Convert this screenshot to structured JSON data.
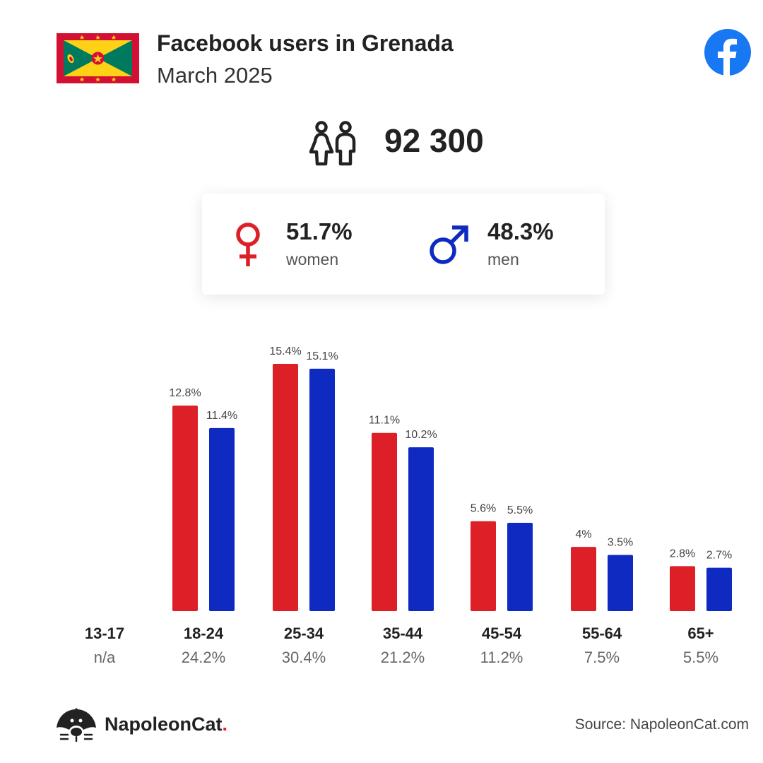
{
  "header": {
    "title": "Facebook users in Grenada",
    "subtitle": "March 2025"
  },
  "total": {
    "value": "92 300"
  },
  "gender": {
    "women_pct": "51.7%",
    "women_label": "women",
    "men_pct": "48.3%",
    "men_label": "men"
  },
  "colors": {
    "women": "#dd1f28",
    "men": "#0f2ac1",
    "facebook": "#1877f2",
    "flag_red": "#d21034",
    "flag_yellow": "#fcd116",
    "flag_green": "#007a5e"
  },
  "icons": {
    "flag": "grenada-flag-icon",
    "facebook": "facebook-logo-icon",
    "people": "people-icon",
    "female": "female-symbol-icon",
    "male": "male-symbol-icon",
    "brand": "napoleoncat-logo-icon"
  },
  "chart_data": {
    "type": "bar",
    "categories": [
      "13-17",
      "18-24",
      "25-34",
      "35-44",
      "45-54",
      "55-64",
      "65+"
    ],
    "category_shares": [
      "n/a",
      "24.2%",
      "30.4%",
      "21.2%",
      "11.2%",
      "7.5%",
      "5.5%"
    ],
    "series": [
      {
        "name": "women",
        "values": [
          null,
          12.8,
          15.4,
          11.1,
          5.6,
          4,
          2.8
        ],
        "labels": [
          "",
          "12.8%",
          "15.4%",
          "11.1%",
          "5.6%",
          "4%",
          "2.8%"
        ]
      },
      {
        "name": "men",
        "values": [
          null,
          11.4,
          15.1,
          10.2,
          5.5,
          3.5,
          2.7
        ],
        "labels": [
          "",
          "11.4%",
          "15.1%",
          "10.2%",
          "5.5%",
          "3.5%",
          "2.7%"
        ]
      }
    ],
    "ylim": [
      0,
      15.4
    ],
    "grid": false
  },
  "footer": {
    "brand_name": "NapoleonCat",
    "brand_dot": ".",
    "source": "Source: NapoleonCat.com"
  }
}
